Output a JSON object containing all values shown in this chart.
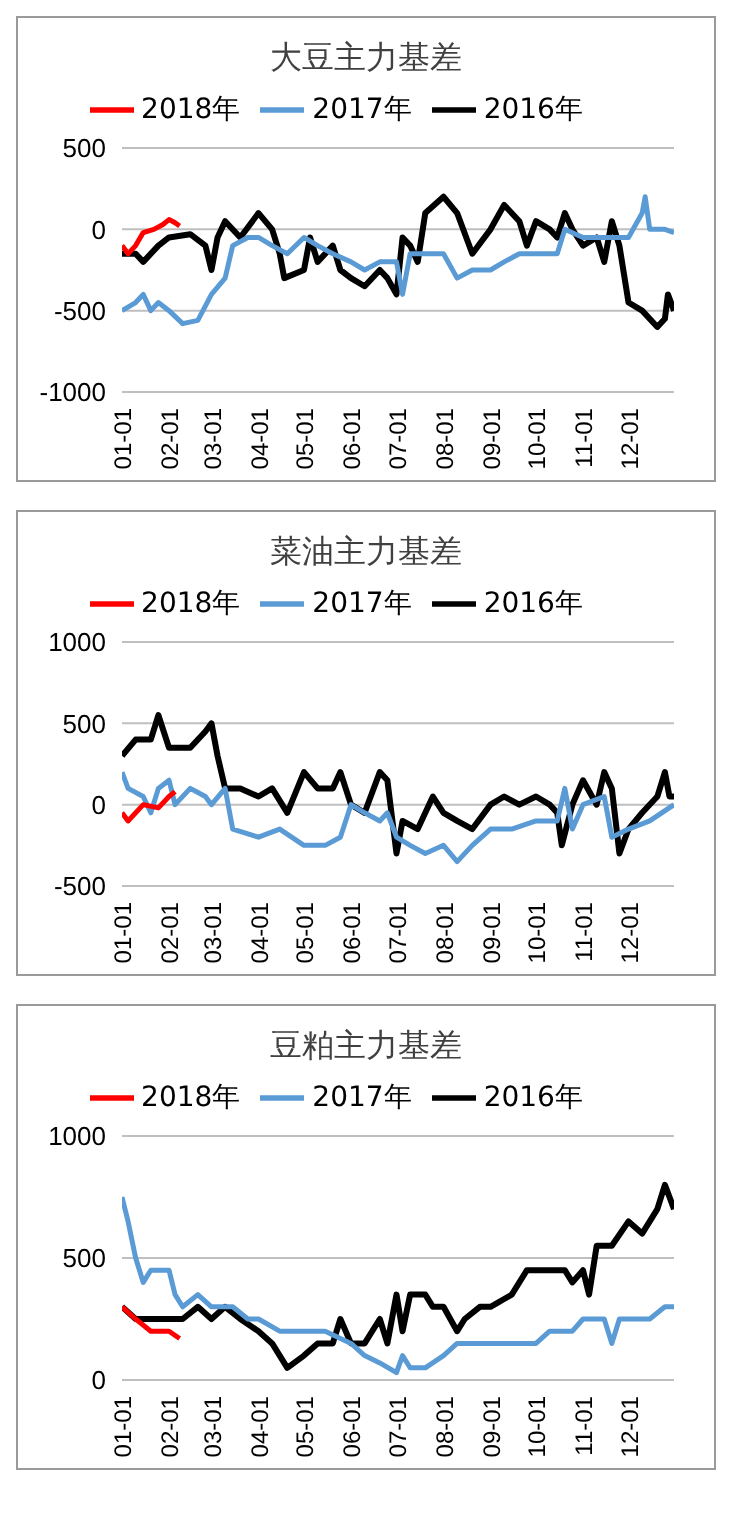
{
  "chart_data": [
    {
      "type": "line",
      "title": "大豆主力基差",
      "legend": "top",
      "grid": "y",
      "marker": "none",
      "line_style": "solid",
      "ylim": [
        -1000,
        500
      ],
      "yticks": [
        -1000,
        -500,
        0,
        500
      ],
      "xlim": [
        "--01-01",
        "--12-31"
      ],
      "xticks": [
        {
          "value": "--01-01",
          "label": "01-01"
        },
        {
          "value": "--02-01",
          "label": "02-01"
        },
        {
          "value": "--03-01",
          "label": "03-01"
        },
        {
          "value": "--04-01",
          "label": "04-01"
        },
        {
          "value": "--05-01",
          "label": "05-01"
        },
        {
          "value": "--06-01",
          "label": "06-01"
        },
        {
          "value": "--07-01",
          "label": "07-01"
        },
        {
          "value": "--08-01",
          "label": "08-01"
        },
        {
          "value": "--09-01",
          "label": "09-01"
        },
        {
          "value": "--10-01",
          "label": "10-01"
        },
        {
          "value": "--11-01",
          "label": "11-01"
        },
        {
          "value": "--12-01",
          "label": "12-01"
        }
      ],
      "series": [
        {
          "name": "2018年",
          "color": "#ff0000",
          "x": [
            "--01-01",
            "--01-05",
            "--01-10",
            "--01-15",
            "--01-22",
            "--01-28",
            "--02-01",
            "--02-05",
            "--02-08"
          ],
          "values": [
            -100,
            -150,
            -100,
            -20,
            0,
            30,
            60,
            40,
            20
          ]
        },
        {
          "name": "2017年",
          "color": "#5b9bd5",
          "x": [
            "--01-01",
            "--01-10",
            "--01-15",
            "--01-20",
            "--01-25",
            "--02-01",
            "--02-10",
            "--02-20",
            "--03-01",
            "--03-10",
            "--03-15",
            "--03-25",
            "--04-01",
            "--04-10",
            "--04-20",
            "--05-01",
            "--05-10",
            "--05-20",
            "--06-01",
            "--06-10",
            "--06-20",
            "--07-01",
            "--07-05",
            "--07-10",
            "--07-20",
            "--08-01",
            "--08-10",
            "--08-20",
            "--09-01",
            "--09-10",
            "--09-20",
            "--10-01",
            "--10-15",
            "--10-20",
            "--11-01",
            "--11-15",
            "--12-01",
            "--12-10",
            "--12-12",
            "--12-15",
            "--12-25",
            "--12-31"
          ],
          "values": [
            -500,
            -450,
            -400,
            -500,
            -450,
            -500,
            -580,
            -560,
            -400,
            -300,
            -100,
            -50,
            -50,
            -100,
            -150,
            -50,
            -100,
            -150,
            -200,
            -250,
            -200,
            -200,
            -400,
            -150,
            -150,
            -150,
            -300,
            -250,
            -250,
            -200,
            -150,
            -150,
            -150,
            0,
            -50,
            -50,
            -50,
            100,
            200,
            0,
            0,
            -20
          ]
        },
        {
          "name": "2016年",
          "color": "#000000",
          "x": [
            "--01-01",
            "--01-10",
            "--01-15",
            "--01-25",
            "--02-01",
            "--02-15",
            "--02-25",
            "--03-01",
            "--03-05",
            "--03-10",
            "--03-20",
            "--04-01",
            "--04-10",
            "--04-15",
            "--04-18",
            "--05-01",
            "--05-05",
            "--05-10",
            "--05-20",
            "--05-25",
            "--06-01",
            "--06-10",
            "--06-20",
            "--06-25",
            "--07-01",
            "--07-05",
            "--07-10",
            "--07-15",
            "--07-20",
            "--08-01",
            "--08-10",
            "--08-20",
            "--09-01",
            "--09-10",
            "--09-20",
            "--09-25",
            "--10-01",
            "--10-10",
            "--10-15",
            "--10-20",
            "--10-25",
            "--11-01",
            "--11-10",
            "--11-15",
            "--11-20",
            "--11-25",
            "--12-01",
            "--12-10",
            "--12-20",
            "--12-25",
            "--12-27",
            "--12-31"
          ],
          "values": [
            -150,
            -150,
            -200,
            -100,
            -50,
            -30,
            -100,
            -250,
            -50,
            50,
            -50,
            100,
            0,
            -150,
            -300,
            -250,
            -50,
            -200,
            -100,
            -250,
            -300,
            -350,
            -250,
            -300,
            -400,
            -50,
            -100,
            -200,
            100,
            200,
            100,
            -150,
            0,
            150,
            50,
            -100,
            50,
            0,
            -50,
            100,
            0,
            -100,
            -50,
            -200,
            50,
            -100,
            -450,
            -500,
            -600,
            -550,
            -400,
            -500
          ]
        }
      ]
    },
    {
      "type": "line",
      "title": "菜油主力基差",
      "legend": "top",
      "grid": "y",
      "marker": "none",
      "line_style": "solid",
      "ylim": [
        -500,
        1000
      ],
      "yticks": [
        -500,
        0,
        500,
        1000
      ],
      "xlim": [
        "--01-01",
        "--12-31"
      ],
      "xticks": [
        {
          "value": "--01-01",
          "label": "01-01"
        },
        {
          "value": "--02-01",
          "label": "02-01"
        },
        {
          "value": "--03-01",
          "label": "03-01"
        },
        {
          "value": "--04-01",
          "label": "04-01"
        },
        {
          "value": "--05-01",
          "label": "05-01"
        },
        {
          "value": "--06-01",
          "label": "06-01"
        },
        {
          "value": "--07-01",
          "label": "07-01"
        },
        {
          "value": "--08-01",
          "label": "08-01"
        },
        {
          "value": "--09-01",
          "label": "09-01"
        },
        {
          "value": "--10-01",
          "label": "10-01"
        },
        {
          "value": "--11-01",
          "label": "11-01"
        },
        {
          "value": "--12-01",
          "label": "12-01"
        }
      ],
      "series": [
        {
          "name": "2018年",
          "color": "#ff0000",
          "x": [
            "--01-01",
            "--01-05",
            "--01-15",
            "--01-25",
            "--02-01",
            "--02-05"
          ],
          "values": [
            -50,
            -100,
            0,
            -20,
            50,
            80
          ]
        },
        {
          "name": "2017年",
          "color": "#5b9bd5",
          "x": [
            "--01-01",
            "--01-05",
            "--01-15",
            "--01-20",
            "--01-25",
            "--02-01",
            "--02-05",
            "--02-15",
            "--02-25",
            "--03-01",
            "--03-10",
            "--03-15",
            "--04-01",
            "--04-15",
            "--05-01",
            "--05-15",
            "--05-25",
            "--06-01",
            "--06-10",
            "--06-20",
            "--06-25",
            "--07-01",
            "--07-10",
            "--07-20",
            "--08-01",
            "--08-10",
            "--08-20",
            "--09-01",
            "--09-15",
            "--10-01",
            "--10-15",
            "--10-20",
            "--10-25",
            "--11-01",
            "--11-15",
            "--11-20",
            "--12-01",
            "--12-15",
            "--12-31"
          ],
          "values": [
            200,
            100,
            50,
            -50,
            100,
            150,
            0,
            100,
            50,
            0,
            100,
            -150,
            -200,
            -150,
            -250,
            -250,
            -200,
            0,
            -50,
            -100,
            -50,
            -200,
            -250,
            -300,
            -250,
            -350,
            -250,
            -150,
            -150,
            -100,
            -100,
            100,
            -150,
            0,
            50,
            -200,
            -150,
            -100,
            0
          ]
        },
        {
          "name": "2016年",
          "color": "#000000",
          "x": [
            "--01-01",
            "--01-10",
            "--01-20",
            "--01-25",
            "--02-01",
            "--02-15",
            "--02-25",
            "--03-01",
            "--03-05",
            "--03-10",
            "--03-20",
            "--04-01",
            "--04-10",
            "--04-20",
            "--05-01",
            "--05-10",
            "--05-20",
            "--05-25",
            "--06-01",
            "--06-10",
            "--06-20",
            "--06-25",
            "--07-01",
            "--07-05",
            "--07-15",
            "--07-25",
            "--08-01",
            "--08-10",
            "--08-20",
            "--09-01",
            "--09-10",
            "--09-20",
            "--10-01",
            "--10-10",
            "--10-15",
            "--10-18",
            "--10-25",
            "--11-01",
            "--11-10",
            "--11-15",
            "--11-20",
            "--11-25",
            "--12-01",
            "--12-10",
            "--12-20",
            "--12-25",
            "--12-28",
            "--12-31"
          ],
          "values": [
            300,
            400,
            400,
            550,
            350,
            350,
            450,
            500,
            300,
            100,
            100,
            50,
            100,
            -50,
            200,
            100,
            100,
            200,
            0,
            -50,
            200,
            150,
            -300,
            -100,
            -150,
            50,
            -50,
            -100,
            -150,
            0,
            50,
            0,
            50,
            0,
            -50,
            -250,
            0,
            150,
            0,
            200,
            100,
            -300,
            -150,
            -50,
            50,
            200,
            50,
            50
          ]
        }
      ]
    },
    {
      "type": "line",
      "title": "豆粕主力基差",
      "legend": "top",
      "grid": "y",
      "marker": "none",
      "line_style": "solid",
      "ylim": [
        0,
        1000
      ],
      "yticks": [
        0,
        500,
        1000
      ],
      "xlim": [
        "--01-01",
        "--12-31"
      ],
      "xticks": [
        {
          "value": "--01-01",
          "label": "01-01"
        },
        {
          "value": "--02-01",
          "label": "02-01"
        },
        {
          "value": "--03-01",
          "label": "03-01"
        },
        {
          "value": "--04-01",
          "label": "04-01"
        },
        {
          "value": "--05-01",
          "label": "05-01"
        },
        {
          "value": "--06-01",
          "label": "06-01"
        },
        {
          "value": "--07-01",
          "label": "07-01"
        },
        {
          "value": "--08-01",
          "label": "08-01"
        },
        {
          "value": "--09-01",
          "label": "09-01"
        },
        {
          "value": "--10-01",
          "label": "10-01"
        },
        {
          "value": "--11-01",
          "label": "11-01"
        },
        {
          "value": "--12-01",
          "label": "12-01"
        }
      ],
      "series": [
        {
          "name": "2018年",
          "color": "#ff0000",
          "x": [
            "--01-01",
            "--01-10",
            "--01-20",
            "--01-25",
            "--02-01",
            "--02-08"
          ],
          "values": [
            300,
            250,
            200,
            200,
            200,
            170
          ]
        },
        {
          "name": "2017年",
          "color": "#5b9bd5",
          "x": [
            "--01-01",
            "--01-05",
            "--01-10",
            "--01-15",
            "--01-20",
            "--02-01",
            "--02-05",
            "--02-10",
            "--02-20",
            "--03-01",
            "--03-15",
            "--03-25",
            "--04-01",
            "--04-15",
            "--04-25",
            "--05-01",
            "--05-15",
            "--06-01",
            "--06-10",
            "--06-20",
            "--07-01",
            "--07-05",
            "--07-10",
            "--07-20",
            "--08-01",
            "--08-10",
            "--08-20",
            "--09-01",
            "--09-15",
            "--10-01",
            "--10-10",
            "--10-25",
            "--11-01",
            "--11-15",
            "--11-20",
            "--11-25",
            "--12-01",
            "--12-15",
            "--12-25",
            "--12-31"
          ],
          "values": [
            750,
            650,
            500,
            400,
            450,
            450,
            350,
            300,
            350,
            300,
            300,
            250,
            250,
            200,
            200,
            200,
            200,
            150,
            100,
            70,
            30,
            100,
            50,
            50,
            100,
            150,
            150,
            150,
            150,
            150,
            200,
            200,
            250,
            250,
            150,
            250,
            250,
            250,
            300,
            300
          ]
        },
        {
          "name": "2016年",
          "color": "#000000",
          "x": [
            "--01-01",
            "--01-10",
            "--01-20",
            "--02-01",
            "--02-10",
            "--02-20",
            "--03-01",
            "--03-10",
            "--03-20",
            "--04-01",
            "--04-10",
            "--04-20",
            "--05-01",
            "--05-10",
            "--05-20",
            "--05-25",
            "--06-01",
            "--06-10",
            "--06-20",
            "--06-25",
            "--07-01",
            "--07-05",
            "--07-10",
            "--07-20",
            "--07-25",
            "--08-01",
            "--08-10",
            "--08-15",
            "--08-25",
            "--09-01",
            "--09-15",
            "--09-25",
            "--10-01",
            "--10-10",
            "--10-20",
            "--10-25",
            "--11-01",
            "--11-05",
            "--11-10",
            "--11-20",
            "--12-01",
            "--12-10",
            "--12-20",
            "--12-25",
            "--12-31"
          ],
          "values": [
            300,
            250,
            250,
            250,
            250,
            300,
            250,
            300,
            250,
            200,
            150,
            50,
            100,
            150,
            150,
            250,
            150,
            150,
            250,
            150,
            350,
            200,
            350,
            350,
            300,
            300,
            200,
            250,
            300,
            300,
            350,
            450,
            450,
            450,
            450,
            400,
            450,
            350,
            550,
            550,
            650,
            600,
            700,
            800,
            700
          ]
        }
      ]
    }
  ]
}
